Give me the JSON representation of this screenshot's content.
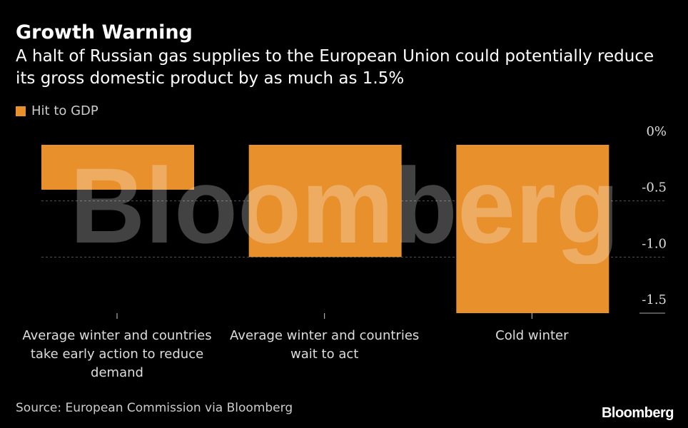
{
  "header": {
    "title": "Growth Warning",
    "subtitle": "A halt of Russian gas supplies to the European Union could potentially reduce its gross domestic product by as much as 1.5%"
  },
  "legend": {
    "label": "Hit to GDP"
  },
  "footer": {
    "source": "Source: European Commission via Bloomberg",
    "brand": "Bloomberg"
  },
  "watermark": {
    "text": "Bloomberg"
  },
  "colors": {
    "bar": "#e8902c",
    "background": "#000000",
    "grid": "#555555"
  },
  "chart_data": {
    "type": "bar",
    "categories": [
      [
        "Average winter and countries",
        "take early action to reduce",
        "demand"
      ],
      [
        "Average winter and countries",
        "wait to act"
      ],
      [
        "Cold winter"
      ]
    ],
    "series": [
      {
        "name": "Hit to GDP",
        "values": [
          -0.4,
          -1.0,
          -1.5
        ]
      }
    ],
    "ylim": [
      -1.5,
      0
    ],
    "yticks": [
      0,
      -0.5,
      -1.0,
      -1.5
    ],
    "yticklabels": [
      "0%",
      "-0.5",
      "-1.0",
      "-1.5"
    ],
    "grid": true,
    "legend_position": "top-left"
  }
}
